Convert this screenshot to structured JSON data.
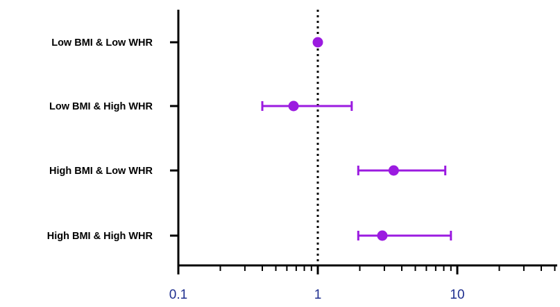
{
  "chart_data": {
    "type": "scatter",
    "subtype": "forest-plot",
    "xscale": "log",
    "xlim": [
      0.1,
      50
    ],
    "xticks": [
      0.1,
      1,
      10
    ],
    "xtick_labels": [
      "0.1",
      "1",
      "10"
    ],
    "reference_line": 1,
    "categories": [
      "Low BMI & Low WHR",
      "Low BMI & High WHR",
      "High BMI & Low WHR",
      "High BMI & High WHR"
    ],
    "estimates": [
      1.0,
      0.67,
      3.5,
      2.9
    ],
    "ci_low": [
      null,
      0.4,
      1.95,
      1.95
    ],
    "ci_high": [
      null,
      1.75,
      8.2,
      9.0
    ],
    "title": "",
    "xlabel": "",
    "ylabel": "",
    "grid": false,
    "colors": {
      "marker": "#9b1be0",
      "axis": "#000000",
      "tick_label": "#1f2f8f"
    }
  }
}
